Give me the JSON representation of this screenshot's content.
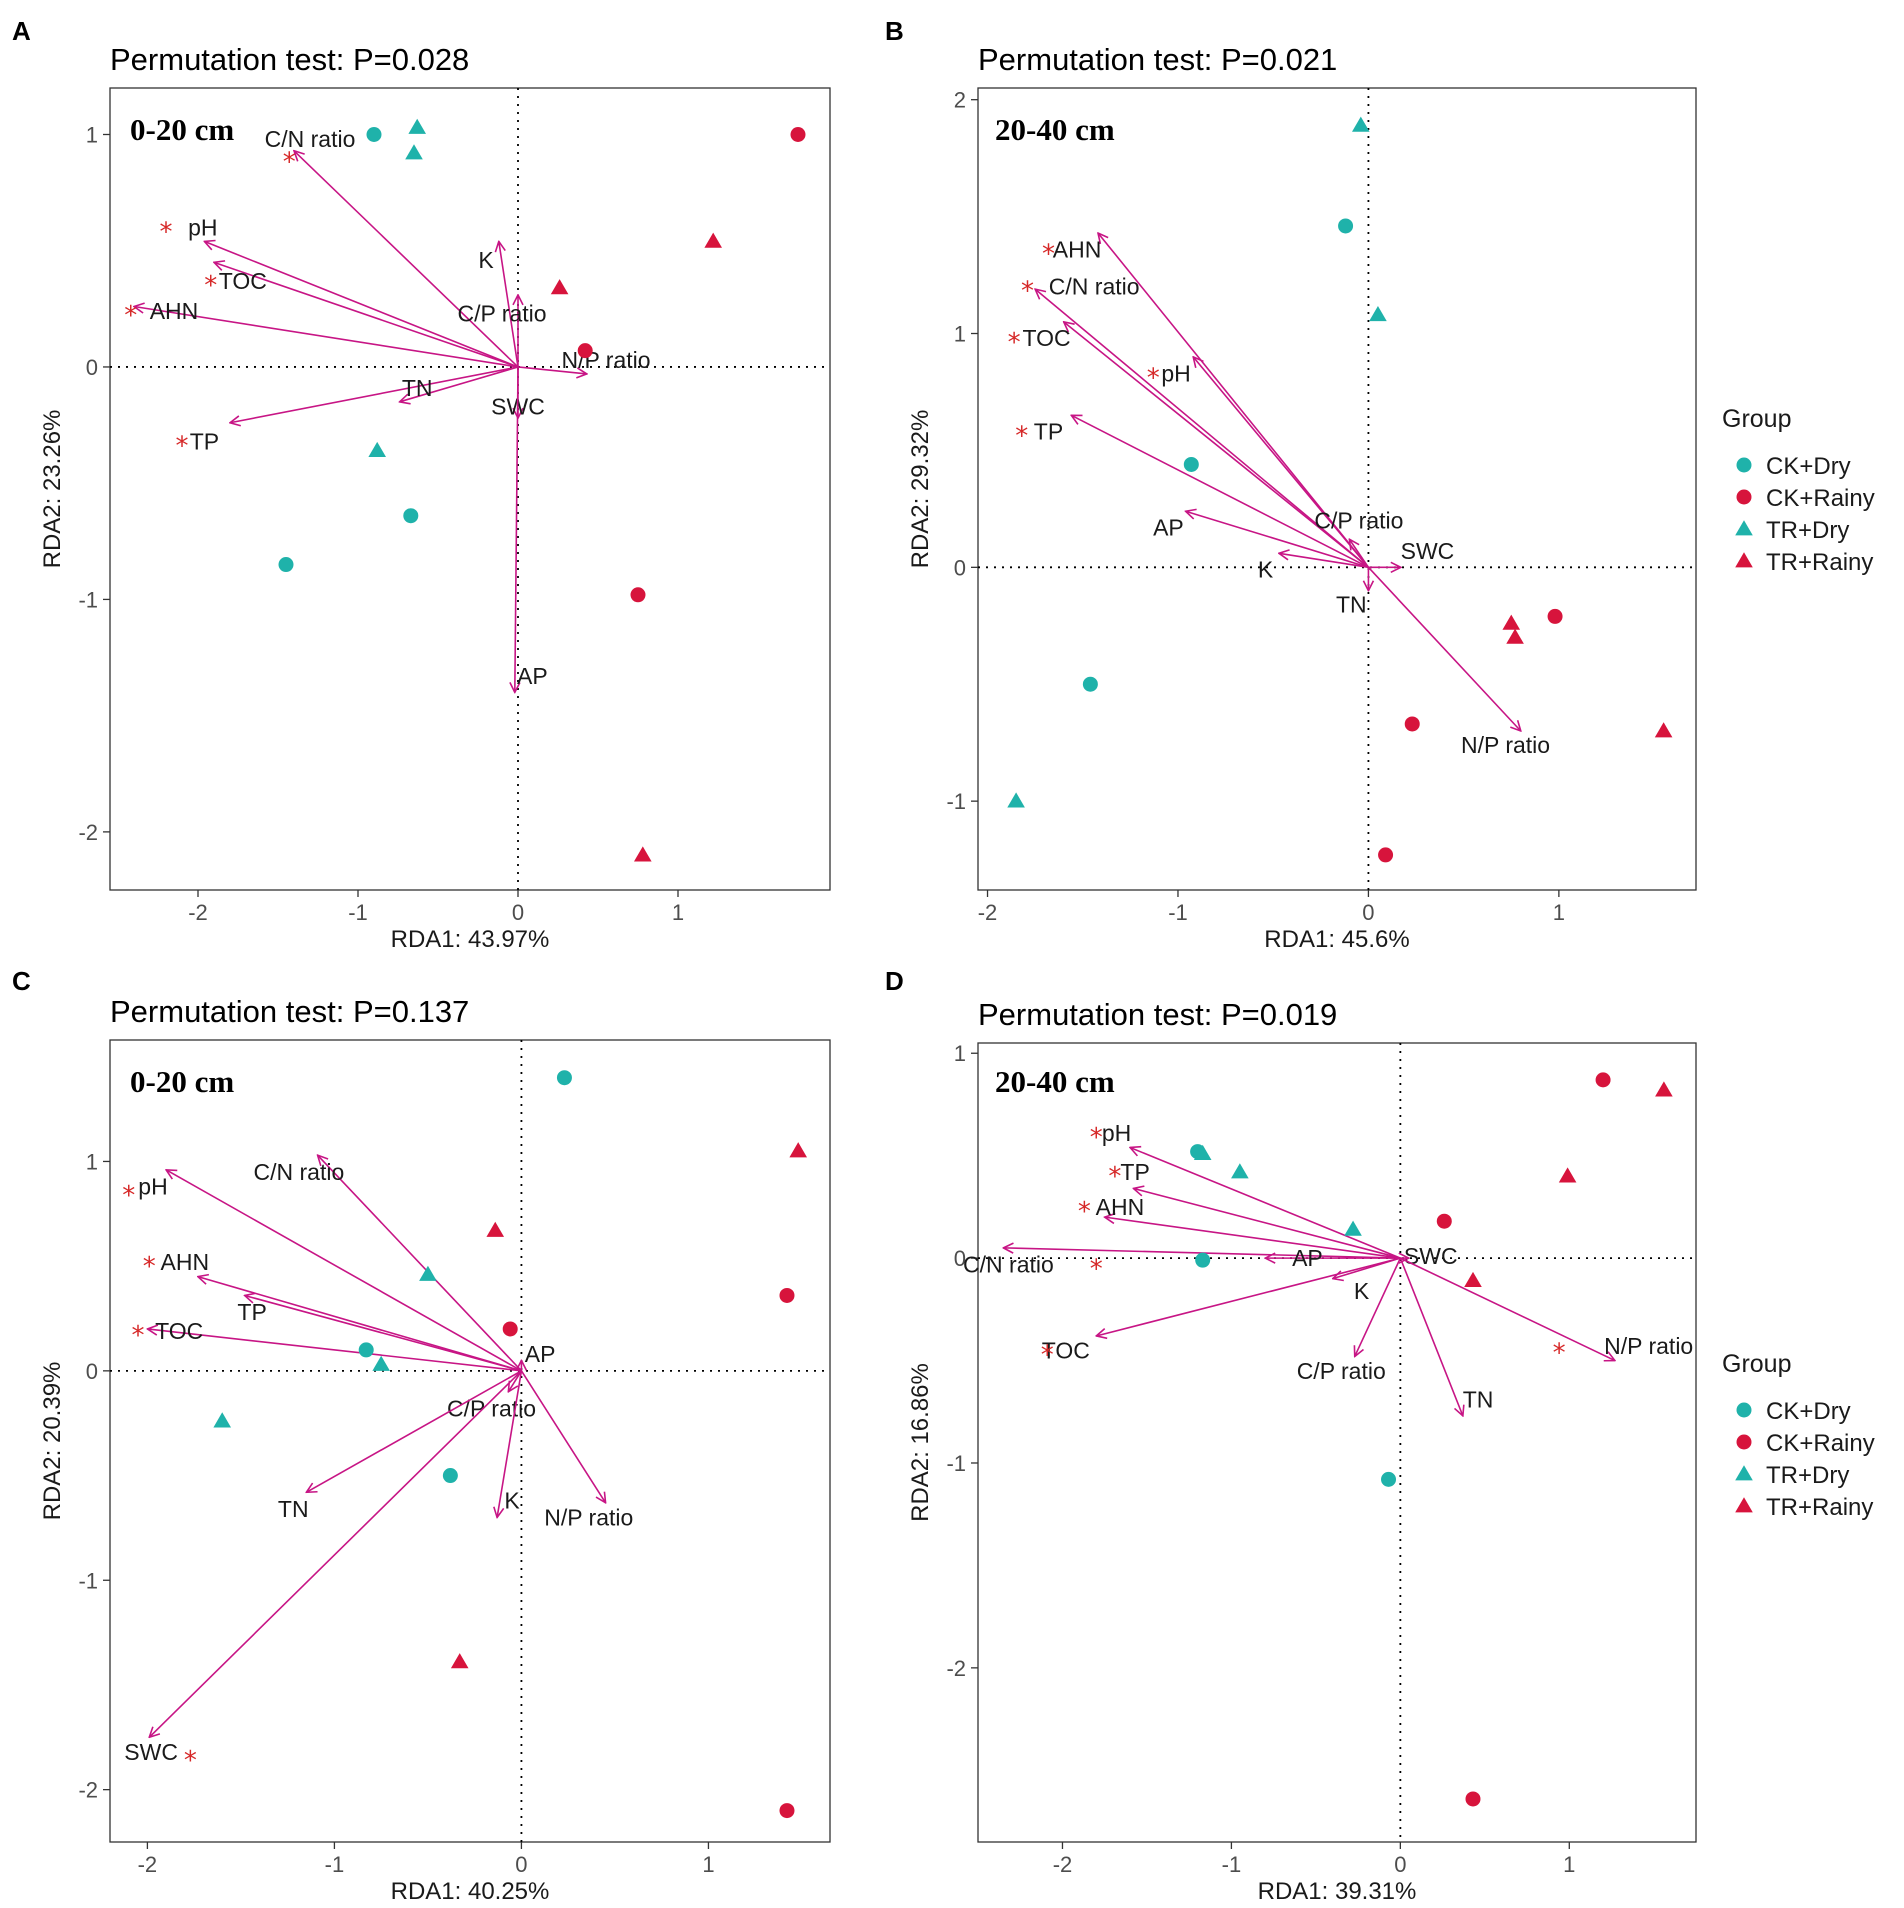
{
  "colors": {
    "arrow": "#C71585",
    "star": "#D62828",
    "ck_dry": "#1FB2AA",
    "ck_rainy": "#D7143C",
    "tr_dry": "#1FB2AA",
    "tr_rainy": "#D7143C",
    "frame": "#333333"
  },
  "legend": {
    "title": "Group",
    "items": [
      {
        "label": "CK+Dry",
        "group": "CK+Dry"
      },
      {
        "label": "CK+Rainy",
        "group": "CK+Rainy"
      },
      {
        "label": "TR+Dry",
        "group": "TR+Dry"
      },
      {
        "label": "TR+Rainy",
        "group": "TR+Rainy"
      }
    ]
  },
  "chart_data": [
    {
      "type": "scatter",
      "panel": "A",
      "title": "Permutation test: P=0.028",
      "depth": "0-20 cm",
      "xlabel": "RDA1: 43.97%",
      "ylabel": "RDA2: 23.26%",
      "xlim": [
        -2.55,
        1.95
      ],
      "ylim": [
        -2.25,
        1.2
      ],
      "xticks": [
        -2,
        -1,
        0,
        1
      ],
      "yticks": [
        -2,
        -1,
        0,
        1
      ],
      "points": [
        {
          "group": "CK+Dry",
          "x": -0.9,
          "y": 1.0
        },
        {
          "group": "CK+Dry",
          "x": -0.67,
          "y": -0.64
        },
        {
          "group": "CK+Dry",
          "x": -1.45,
          "y": -0.85
        },
        {
          "group": "CK+Rainy",
          "x": 1.75,
          "y": 1.0
        },
        {
          "group": "CK+Rainy",
          "x": 0.42,
          "y": 0.07
        },
        {
          "group": "CK+Rainy",
          "x": 0.75,
          "y": -0.98
        },
        {
          "group": "TR+Dry",
          "x": -0.63,
          "y": 1.03
        },
        {
          "group": "TR+Dry",
          "x": -0.65,
          "y": 0.92
        },
        {
          "group": "TR+Dry",
          "x": -0.88,
          "y": -0.36
        },
        {
          "group": "TR+Rainy",
          "x": 1.22,
          "y": 0.54
        },
        {
          "group": "TR+Rainy",
          "x": 0.26,
          "y": 0.34
        },
        {
          "group": "TR+Rainy",
          "x": 0.78,
          "y": -2.1
        }
      ],
      "arrows": [
        {
          "name": "C/N ratio",
          "x": -1.4,
          "y": 0.93,
          "star": true,
          "label_x": -1.3,
          "label_y": 0.98,
          "star_x": -1.43,
          "star_y": 0.9
        },
        {
          "name": "pH",
          "x": -1.96,
          "y": 0.54,
          "star": true,
          "label_x": -1.97,
          "label_y": 0.6,
          "star_x": -2.2,
          "star_y": 0.6
        },
        {
          "name": "TOC",
          "x": -1.9,
          "y": 0.45,
          "star": true,
          "label_x": -1.72,
          "label_y": 0.37,
          "star_x": -1.92,
          "star_y": 0.37
        },
        {
          "name": "AHN",
          "x": -2.4,
          "y": 0.26,
          "star": true,
          "label_x": -2.15,
          "label_y": 0.24,
          "star_x": -2.42,
          "star_y": 0.24
        },
        {
          "name": "TP",
          "x": -1.8,
          "y": -0.24,
          "star": true,
          "label_x": -1.96,
          "label_y": -0.32,
          "star_x": -2.1,
          "star_y": -0.32
        },
        {
          "name": "K",
          "x": -0.12,
          "y": 0.54,
          "star": false,
          "label_x": -0.2,
          "label_y": 0.46
        },
        {
          "name": "C/P  ratio",
          "x": 0.0,
          "y": 0.31,
          "star": false,
          "label_x": -0.1,
          "label_y": 0.23
        },
        {
          "name": "N/P  ratio",
          "x": 0.43,
          "y": -0.03,
          "star": false,
          "label_x": 0.55,
          "label_y": 0.03
        },
        {
          "name": "TN",
          "x": -0.74,
          "y": -0.15,
          "star": false,
          "label_x": -0.63,
          "label_y": -0.09
        },
        {
          "name": "SWC",
          "x": 0.0,
          "y": -0.22,
          "star": false,
          "label_x": 0.0,
          "label_y": -0.17
        },
        {
          "name": "AP",
          "x": -0.02,
          "y": -1.4,
          "star": false,
          "label_x": 0.09,
          "label_y": -1.33
        }
      ]
    },
    {
      "type": "scatter",
      "panel": "B",
      "title": "Permutation test: P=0.021",
      "depth": "20-40 cm",
      "xlabel": "RDA1: 45.6%",
      "ylabel": "RDA2: 29.32%",
      "xlim": [
        -2.05,
        1.72
      ],
      "ylim": [
        -1.38,
        2.05
      ],
      "xticks": [
        -2,
        -1,
        0,
        1
      ],
      "yticks": [
        -1,
        0,
        1,
        2
      ],
      "points": [
        {
          "group": "CK+Dry",
          "x": -0.12,
          "y": 1.46
        },
        {
          "group": "CK+Dry",
          "x": -0.93,
          "y": 0.44
        },
        {
          "group": "CK+Dry",
          "x": -1.46,
          "y": -0.5
        },
        {
          "group": "CK+Rainy",
          "x": 0.98,
          "y": -0.21
        },
        {
          "group": "CK+Rainy",
          "x": 0.23,
          "y": -0.67
        },
        {
          "group": "CK+Rainy",
          "x": 0.09,
          "y": -1.23
        },
        {
          "group": "TR+Dry",
          "x": -0.04,
          "y": 1.89
        },
        {
          "group": "TR+Dry",
          "x": 0.05,
          "y": 1.08
        },
        {
          "group": "TR+Dry",
          "x": -1.85,
          "y": -1.0
        },
        {
          "group": "TR+Rainy",
          "x": 0.75,
          "y": -0.24
        },
        {
          "group": "TR+Rainy",
          "x": 0.77,
          "y": -0.3
        },
        {
          "group": "TR+Rainy",
          "x": 1.55,
          "y": -0.7
        }
      ],
      "arrows": [
        {
          "name": "AHN",
          "x": -1.42,
          "y": 1.43,
          "star": true,
          "label_x": -1.53,
          "label_y": 1.36,
          "star_x": -1.68,
          "star_y": 1.36
        },
        {
          "name": "C/N ratio",
          "x": -1.75,
          "y": 1.19,
          "star": true,
          "label_x": -1.44,
          "label_y": 1.2,
          "star_x": -1.79,
          "star_y": 1.2
        },
        {
          "name": "TOC",
          "x": -1.6,
          "y": 1.05,
          "star": true,
          "label_x": -1.69,
          "label_y": 0.98,
          "star_x": -1.86,
          "star_y": 0.98
        },
        {
          "name": "pH",
          "x": -0.92,
          "y": 0.9,
          "star": true,
          "label_x": -1.01,
          "label_y": 0.83,
          "star_x": -1.13,
          "star_y": 0.83
        },
        {
          "name": "TP",
          "x": -1.56,
          "y": 0.65,
          "star": true,
          "label_x": -1.68,
          "label_y": 0.58,
          "star_x": -1.82,
          "star_y": 0.58
        },
        {
          "name": "AP",
          "x": -0.96,
          "y": 0.24,
          "star": false,
          "label_x": -1.05,
          "label_y": 0.17
        },
        {
          "name": "C/P  ratio",
          "x": -0.1,
          "y": 0.12,
          "star": false,
          "label_x": -0.05,
          "label_y": 0.2
        },
        {
          "name": "K",
          "x": -0.47,
          "y": 0.06,
          "star": false,
          "label_x": -0.54,
          "label_y": -0.01
        },
        {
          "name": "SWC",
          "x": 0.17,
          "y": 0.0,
          "star": false,
          "label_x": 0.31,
          "label_y": 0.07
        },
        {
          "name": "TN",
          "x": 0.0,
          "y": -0.1,
          "star": false,
          "label_x": -0.09,
          "label_y": -0.16
        },
        {
          "name": "N/P  ratio",
          "x": 0.8,
          "y": -0.7,
          "star": false,
          "label_x": 0.72,
          "label_y": -0.76
        }
      ]
    },
    {
      "type": "scatter",
      "panel": "C",
      "title": "Permutation test: P=0.137",
      "depth": "0-20 cm",
      "xlabel": "RDA1: 40.25%",
      "ylabel": "RDA2: 20.39%",
      "xlim": [
        -2.2,
        1.65
      ],
      "ylim": [
        -2.25,
        1.58
      ],
      "xticks": [
        -2,
        -1,
        0,
        1
      ],
      "yticks": [
        -2,
        -1,
        0,
        1
      ],
      "points": [
        {
          "group": "CK+Dry",
          "x": 0.23,
          "y": 1.4
        },
        {
          "group": "CK+Dry",
          "x": -0.83,
          "y": 0.1
        },
        {
          "group": "CK+Dry",
          "x": -0.38,
          "y": -0.5
        },
        {
          "group": "CK+Rainy",
          "x": 1.42,
          "y": 0.36
        },
        {
          "group": "CK+Rainy",
          "x": -0.06,
          "y": 0.2
        },
        {
          "group": "CK+Rainy",
          "x": 1.42,
          "y": -2.1
        },
        {
          "group": "TR+Dry",
          "x": -0.5,
          "y": 0.46
        },
        {
          "group": "TR+Dry",
          "x": -0.75,
          "y": 0.03
        },
        {
          "group": "TR+Dry",
          "x": -1.6,
          "y": -0.24
        },
        {
          "group": "TR+Rainy",
          "x": 1.48,
          "y": 1.05
        },
        {
          "group": "TR+Rainy",
          "x": -0.14,
          "y": 0.67
        },
        {
          "group": "TR+Rainy",
          "x": -0.33,
          "y": -1.39
        }
      ],
      "arrows": [
        {
          "name": "C/N ratio",
          "x": -1.09,
          "y": 1.03,
          "star": false,
          "label_x": -1.19,
          "label_y": 0.95
        },
        {
          "name": "pH",
          "x": -1.9,
          "y": 0.96,
          "star": true,
          "label_x": -1.97,
          "label_y": 0.88,
          "star_x": -2.1,
          "star_y": 0.86
        },
        {
          "name": "AHN",
          "x": -1.73,
          "y": 0.45,
          "star": true,
          "label_x": -1.8,
          "label_y": 0.52,
          "star_x": -1.99,
          "star_y": 0.52
        },
        {
          "name": "TP",
          "x": -1.48,
          "y": 0.36,
          "star": false,
          "label_x": -1.44,
          "label_y": 0.28
        },
        {
          "name": "TOC",
          "x": -2.0,
          "y": 0.2,
          "star": true,
          "label_x": -1.83,
          "label_y": 0.19,
          "star_x": -2.05,
          "star_y": 0.19
        },
        {
          "name": "AP",
          "x": 0.0,
          "y": 0.05,
          "star": false,
          "label_x": 0.1,
          "label_y": 0.08
        },
        {
          "name": "C/P  ratio",
          "x": -0.07,
          "y": -0.1,
          "star": false,
          "label_x": -0.16,
          "label_y": -0.18
        },
        {
          "name": "TN",
          "x": -1.15,
          "y": -0.58,
          "star": false,
          "label_x": -1.22,
          "label_y": -0.66
        },
        {
          "name": "K",
          "x": -0.13,
          "y": -0.7,
          "star": false,
          "label_x": -0.05,
          "label_y": -0.62
        },
        {
          "name": "N/P  ratio",
          "x": 0.45,
          "y": -0.63,
          "star": false,
          "label_x": 0.36,
          "label_y": -0.7
        },
        {
          "name": "SWC",
          "x": -1.99,
          "y": -1.75,
          "star": true,
          "label_x": -1.98,
          "label_y": -1.82,
          "star_x": -1.77,
          "star_y": -1.84
        }
      ]
    },
    {
      "type": "scatter",
      "panel": "D",
      "title": "Permutation test: P=0.019",
      "depth": "20-40 cm",
      "xlabel": "RDA1: 39.31%",
      "ylabel": "RDA2: 16.86%",
      "xlim": [
        -2.5,
        1.75
      ],
      "ylim": [
        -2.85,
        1.05
      ],
      "xticks": [
        -2,
        -1,
        0,
        1
      ],
      "yticks": [
        -2,
        -1,
        0,
        1
      ],
      "points": [
        {
          "group": "CK+Dry",
          "x": -1.2,
          "y": 0.52
        },
        {
          "group": "CK+Dry",
          "x": -1.17,
          "y": -0.01
        },
        {
          "group": "CK+Dry",
          "x": -0.07,
          "y": -1.08
        },
        {
          "group": "CK+Rainy",
          "x": 1.2,
          "y": 0.87
        },
        {
          "group": "CK+Rainy",
          "x": 0.26,
          "y": 0.18
        },
        {
          "group": "CK+Rainy",
          "x": 0.43,
          "y": -2.64
        },
        {
          "group": "TR+Dry",
          "x": -1.17,
          "y": 0.51
        },
        {
          "group": "TR+Dry",
          "x": -0.95,
          "y": 0.42
        },
        {
          "group": "TR+Dry",
          "x": -0.28,
          "y": 0.14
        },
        {
          "group": "TR+Rainy",
          "x": 1.56,
          "y": 0.82
        },
        {
          "group": "TR+Rainy",
          "x": 0.99,
          "y": 0.4
        },
        {
          "group": "TR+Rainy",
          "x": 0.43,
          "y": -0.11
        }
      ],
      "arrows": [
        {
          "name": "pH",
          "x": -1.6,
          "y": 0.54,
          "star": true,
          "label_x": -1.68,
          "label_y": 0.61,
          "star_x": -1.8,
          "star_y": 0.61
        },
        {
          "name": "TP",
          "x": -1.58,
          "y": 0.34,
          "star": true,
          "label_x": -1.57,
          "label_y": 0.42,
          "star_x": -1.69,
          "star_y": 0.42
        },
        {
          "name": "AHN",
          "x": -1.75,
          "y": 0.2,
          "star": true,
          "label_x": -1.66,
          "label_y": 0.25,
          "star_x": -1.87,
          "star_y": 0.25
        },
        {
          "name": "C/N ratio",
          "x": -2.35,
          "y": 0.05,
          "star": true,
          "label_x": -2.32,
          "label_y": -0.03,
          "star_x": -1.8,
          "star_y": -0.03
        },
        {
          "name": "AP",
          "x": -0.8,
          "y": -0.0,
          "star": false,
          "label_x": -0.55,
          "label_y": -0.0
        },
        {
          "name": "SWC",
          "x": 0.05,
          "y": 0.0,
          "star": false,
          "label_x": 0.18,
          "label_y": 0.01
        },
        {
          "name": "K",
          "x": -0.4,
          "y": -0.1,
          "star": false,
          "label_x": -0.23,
          "label_y": -0.16
        },
        {
          "name": "TOC",
          "x": -1.8,
          "y": -0.38,
          "star": true,
          "label_x": -1.98,
          "label_y": -0.45,
          "star_x": -2.09,
          "star_y": -0.45
        },
        {
          "name": "C/P  ratio",
          "x": -0.27,
          "y": -0.48,
          "star": false,
          "label_x": -0.35,
          "label_y": -0.55
        },
        {
          "name": "TN",
          "x": 0.37,
          "y": -0.77,
          "star": false,
          "label_x": 0.46,
          "label_y": -0.69
        },
        {
          "name": "N/P  ratio",
          "x": 1.27,
          "y": -0.5,
          "star": true,
          "label_x": 1.47,
          "label_y": -0.43,
          "star_x": 0.94,
          "star_y": -0.44
        }
      ]
    }
  ]
}
